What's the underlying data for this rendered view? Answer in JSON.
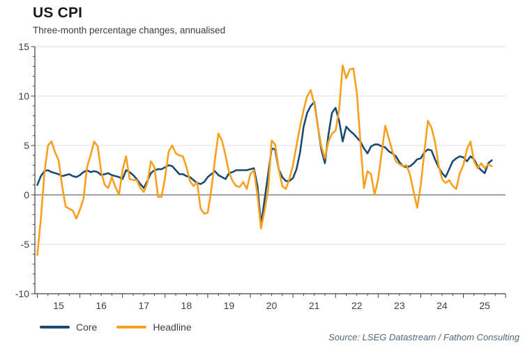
{
  "header": {
    "title": "US CPI",
    "subtitle": "Three-month percentage changes, annualised"
  },
  "source": "Source: LSEG Datastream / Fathom Consulting",
  "legend": [
    {
      "label": "Core",
      "color": "#1b4b71"
    },
    {
      "label": "Headline",
      "color": "#f8a01e"
    }
  ],
  "colors": {
    "grid": "#dcdcdc",
    "axis": "#404040",
    "tick_label": "#3f3f3f"
  },
  "chart_data": {
    "type": "line",
    "title": "US CPI",
    "subtitle": "Three-month percentage changes, annualised",
    "frequency": "monthly",
    "x_start": "2015-01",
    "x_end": "2025-09",
    "ylim": [
      -10,
      15
    ],
    "y_ticks": [
      15,
      10,
      5,
      0,
      -5,
      -10
    ],
    "x_tick_labels": [
      "15",
      "16",
      "17",
      "18",
      "19",
      "20",
      "21",
      "22",
      "23",
      "24",
      "25"
    ],
    "grid": true,
    "legend_position": "bottom-left",
    "series": [
      {
        "name": "Core",
        "color": "#1b4b71",
        "values": [
          1.0,
          1.9,
          2.4,
          2.5,
          2.3,
          2.2,
          2.1,
          1.9,
          2.0,
          2.1,
          1.9,
          1.8,
          2.0,
          2.3,
          2.5,
          2.3,
          2.4,
          2.3,
          2.0,
          2.1,
          2.2,
          2.0,
          1.9,
          1.8,
          1.6,
          2.5,
          2.3,
          2.0,
          1.6,
          1.1,
          0.7,
          1.4,
          2.2,
          2.5,
          2.6,
          2.6,
          2.8,
          3.0,
          2.9,
          2.5,
          2.1,
          2.1,
          1.9,
          1.8,
          1.5,
          1.2,
          1.1,
          1.3,
          1.8,
          2.1,
          2.4,
          2.0,
          1.8,
          1.6,
          2.2,
          2.3,
          2.5,
          2.5,
          2.5,
          2.5,
          2.6,
          2.7,
          0.9,
          -3.0,
          -0.5,
          2.1,
          4.7,
          4.6,
          2.6,
          1.8,
          1.4,
          1.4,
          1.7,
          2.6,
          4.3,
          6.9,
          8.3,
          9.0,
          9.4,
          7.0,
          4.6,
          3.2,
          6.1,
          8.3,
          8.8,
          7.5,
          5.4,
          6.9,
          6.5,
          6.2,
          5.8,
          5.4,
          4.7,
          4.2,
          4.9,
          5.1,
          5.1,
          4.9,
          4.8,
          4.4,
          4.2,
          3.9,
          3.3,
          2.9,
          2.8,
          2.9,
          3.2,
          3.6,
          3.7,
          4.3,
          4.6,
          4.5,
          3.6,
          2.8,
          2.2,
          1.8,
          2.6,
          3.4,
          3.7,
          3.9,
          3.8,
          3.4,
          3.9,
          3.6,
          2.9,
          2.5,
          2.2,
          3.2,
          3.5
        ]
      },
      {
        "name": "Headline",
        "color": "#f8a01e",
        "values": [
          -6.1,
          -2.4,
          2.2,
          5.0,
          5.4,
          4.3,
          3.5,
          0.9,
          -1.2,
          -1.4,
          -1.6,
          -2.4,
          -1.5,
          -0.4,
          2.8,
          4.0,
          5.4,
          4.9,
          2.3,
          1.0,
          0.7,
          1.8,
          0.8,
          0.0,
          2.5,
          3.9,
          1.6,
          1.5,
          1.5,
          0.7,
          0.3,
          1.2,
          3.4,
          2.8,
          -0.2,
          -0.2,
          1.8,
          4.4,
          5.0,
          4.2,
          4.0,
          3.9,
          2.8,
          1.4,
          0.9,
          1.3,
          -1.4,
          -1.9,
          -1.8,
          0.5,
          3.5,
          6.2,
          5.5,
          4.0,
          2.3,
          1.4,
          0.9,
          0.8,
          1.3,
          0.6,
          2.1,
          2.5,
          0.0,
          -3.4,
          -1.6,
          0.5,
          5.5,
          5.1,
          2.6,
          0.9,
          0.6,
          1.6,
          3.0,
          5.0,
          6.9,
          8.6,
          10.0,
          10.6,
          9.2,
          7.0,
          4.9,
          3.7,
          5.4,
          6.2,
          6.5,
          8.6,
          13.1,
          11.8,
          12.7,
          12.8,
          10.3,
          5.4,
          0.7,
          2.4,
          2.1,
          0.0,
          1.6,
          4.3,
          7.0,
          5.7,
          4.4,
          3.4,
          3.1,
          2.9,
          3.0,
          2.0,
          0.3,
          -1.3,
          1.0,
          4.3,
          7.5,
          6.8,
          5.4,
          3.0,
          1.6,
          1.2,
          1.5,
          0.9,
          0.6,
          2.2,
          3.0,
          4.6,
          5.4,
          3.4,
          2.7,
          3.2,
          2.7,
          3.1,
          2.9
        ]
      }
    ]
  }
}
